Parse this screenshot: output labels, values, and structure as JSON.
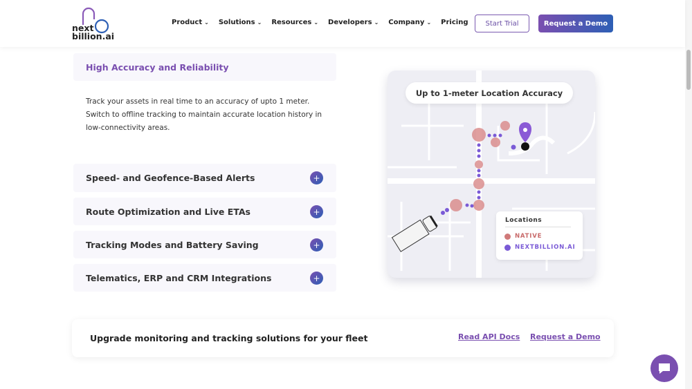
{
  "header": {
    "logo_line1": "next",
    "logo_line2": "billion.ai",
    "nav": [
      {
        "label": "Product"
      },
      {
        "label": "Solutions"
      },
      {
        "label": "Resources"
      },
      {
        "label": "Developers"
      },
      {
        "label": "Company"
      },
      {
        "label": "Pricing"
      }
    ],
    "start_trial": "Start Trial",
    "request_demo": "Request a Demo"
  },
  "accordion": [
    {
      "title": "High Accuracy and Reliability",
      "open": true,
      "description": "Track your assets in real time to an accuracy of upto 1 meter. Switch to offline tracking to maintain accurate location history in low-connectivity areas."
    },
    {
      "title": "Speed- and Geofence-Based Alerts",
      "open": false
    },
    {
      "title": "Route Optimization and Live ETAs",
      "open": false
    },
    {
      "title": "Tracking Modes and Battery Saving",
      "open": false
    },
    {
      "title": "Telematics, ERP and CRM Integrations",
      "open": false
    }
  ],
  "map": {
    "title": "Up to 1-meter Location Accuracy",
    "legend_title": "Locations",
    "legend": [
      {
        "label": "NATIVE",
        "color": "#d07a7a"
      },
      {
        "label": "NEXTBILLION.AI",
        "color": "#7a5ad6"
      }
    ]
  },
  "cta": {
    "text": "Upgrade monitoring and tracking solutions for your fleet",
    "link1": "Read API Docs",
    "link2": "Request a Demo"
  },
  "colors": {
    "accent": "#7a4fb0",
    "accent2": "#2d5fb5"
  }
}
